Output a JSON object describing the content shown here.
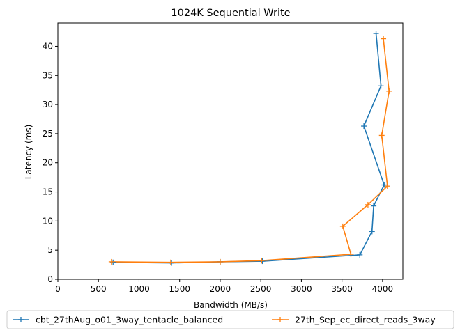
{
  "chart_data": {
    "type": "line",
    "title": "1024K  Sequential Write",
    "xlabel": "Bandwidth (MB/s)",
    "ylabel": "Latency (ms)",
    "xlim": [
      0,
      4250
    ],
    "ylim": [
      0,
      44
    ],
    "xticks": [
      0,
      500,
      1000,
      1500,
      2000,
      2500,
      3000,
      3500,
      4000
    ],
    "yticks": [
      0,
      5,
      10,
      15,
      20,
      25,
      30,
      35,
      40
    ],
    "grid": false,
    "legend_position": "bottom, outside, two columns",
    "marker": "+",
    "series": [
      {
        "name": "cbt_27thAug_o01_3way_tentacle_balanced",
        "color": "#1f77b4",
        "x": [
          680,
          1400,
          2000,
          2520,
          3720,
          3870,
          3890,
          4020,
          3770,
          3980,
          3920
        ],
        "y": [
          2.9,
          2.8,
          3.0,
          3.1,
          4.2,
          8.2,
          12.6,
          16.2,
          26.3,
          33.2,
          42.2
        ]
      },
      {
        "name": "27th_Sep_ec_direct_reads_3way",
        "color": "#ff7f0e",
        "x": [
          660,
          1390,
          2000,
          2510,
          3610,
          3510,
          3820,
          4060,
          3990,
          4080,
          4010
        ],
        "y": [
          3.0,
          2.9,
          3.0,
          3.2,
          4.3,
          9.1,
          12.8,
          16.0,
          24.7,
          32.3,
          41.3
        ]
      }
    ]
  }
}
